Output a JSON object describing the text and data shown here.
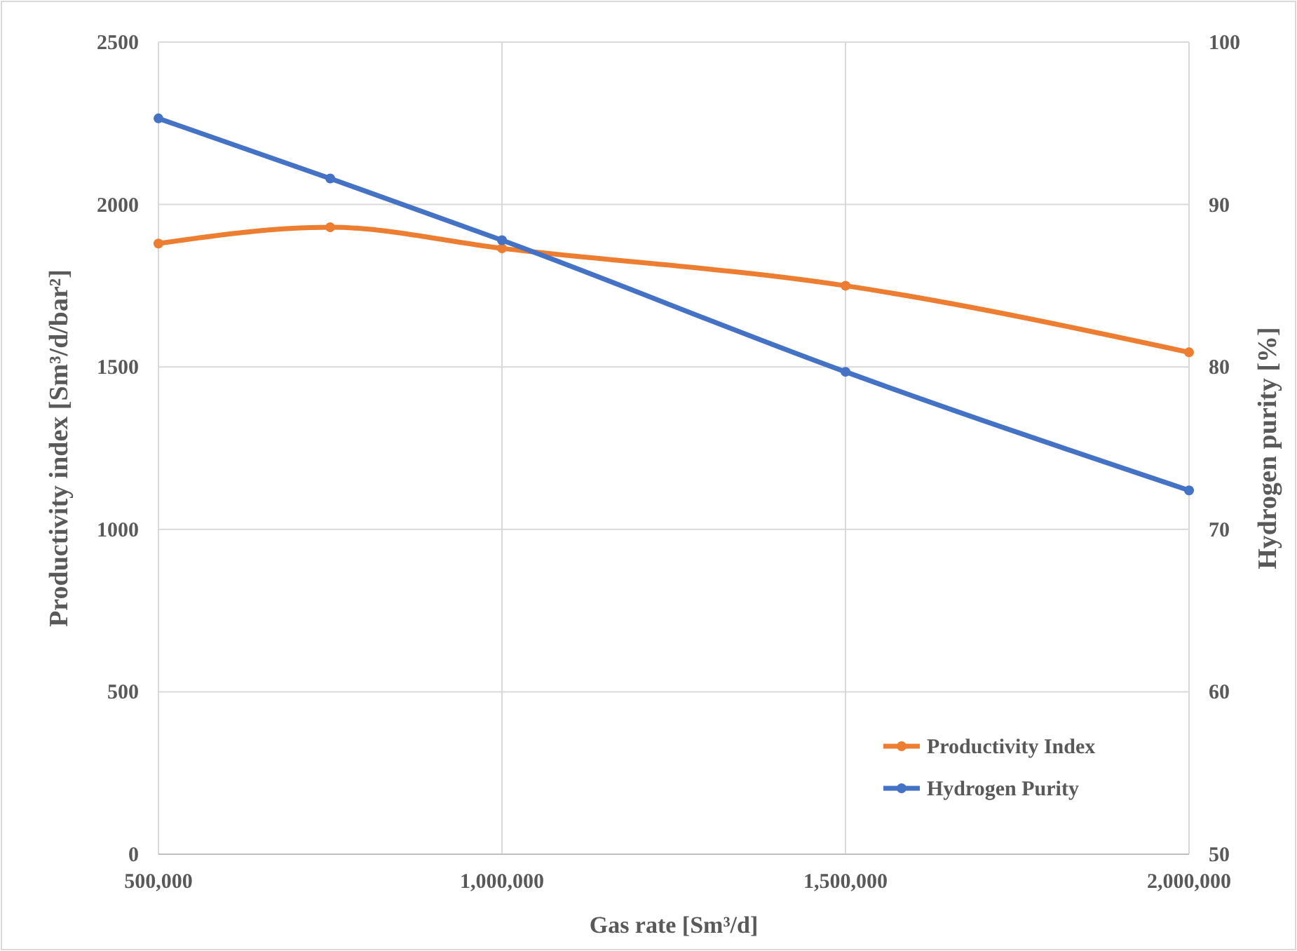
{
  "chart_data": {
    "type": "line",
    "xlabel": "Gas rate [Sm³/d]",
    "ylabel": "Productivity index [Sm³/d/bar²]",
    "y2label": "Hydrogen purity  [%]",
    "x": [
      500000,
      750000,
      1000000,
      1500000,
      2000000
    ],
    "series": [
      {
        "name": "Productivity Index",
        "color": "#ed7d31",
        "values": [
          1880,
          1930,
          1865,
          1750,
          1545
        ]
      },
      {
        "name": "Hydrogen Purity",
        "color": "#4472c4",
        "axis": "y2",
        "values": [
          95.3,
          91.6,
          87.8,
          79.7,
          72.4
        ]
      }
    ],
    "xlim": [
      500000,
      2000000
    ],
    "xticks": [
      {
        "value": 500000,
        "label": "500,000"
      },
      {
        "value": 1000000,
        "label": "1,000,000"
      },
      {
        "value": 1500000,
        "label": "1,500,000"
      },
      {
        "value": 2000000,
        "label": "2,000,000"
      }
    ],
    "ylim": [
      0,
      2500
    ],
    "yticks": [
      0,
      500,
      1000,
      1500,
      2000,
      2500
    ],
    "y2lim": [
      50,
      100
    ],
    "y2ticks": [
      50,
      60,
      70,
      80,
      90,
      100
    ],
    "grid": true,
    "legend": "bottom right",
    "marker": "circle",
    "line_style": "solid"
  }
}
